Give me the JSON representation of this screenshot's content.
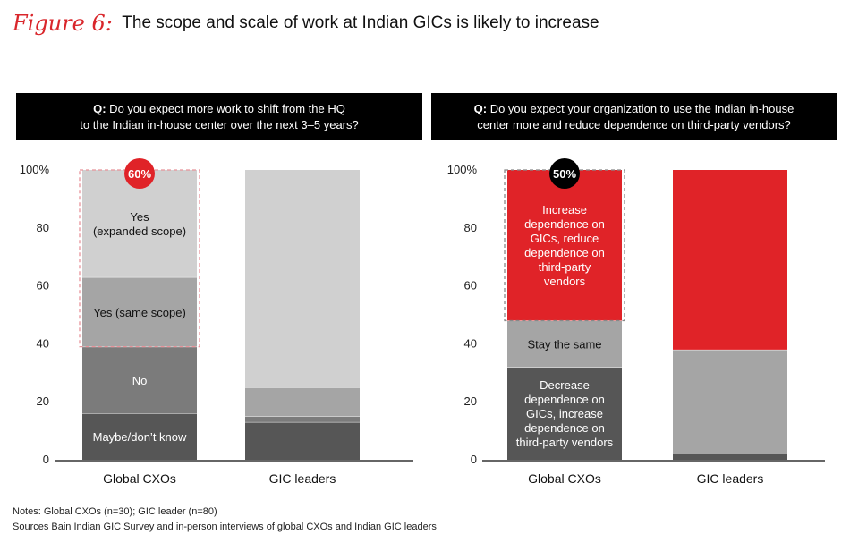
{
  "figure": {
    "label": "Figure 6:",
    "title": "The scope and scale of work at Indian GICs is likely to increase"
  },
  "colors": {
    "red": "#e02328",
    "black": "#000000",
    "dark_gray": "#565656",
    "mid_gray": "#7b7b7b",
    "light_gray": "#a5a5a5",
    "lightest_gray": "#d0d0d0"
  },
  "chart_data": [
    {
      "type": "bar",
      "stacked": true,
      "title": "Q: Do you expect more work to shift from the HQ to the Indian in-house center over the next 3–5 years?",
      "title_lines": [
        [
          "Q:",
          " Do you expect more work to shift from the HQ"
        ],
        [
          "",
          "to the Indian in-house center over the next 3–5 years?"
        ]
      ],
      "categories": [
        "Global CXOs",
        "GIC leaders"
      ],
      "yticks": [
        "0",
        "20",
        "40",
        "60",
        "80",
        "100%"
      ],
      "ylim": [
        0,
        100
      ],
      "series": [
        {
          "name": "Maybe/don't know",
          "label_lines": [
            "Maybe/don’t know"
          ],
          "color": "#565656",
          "text_color": "#ffffff",
          "values": [
            16,
            13
          ]
        },
        {
          "name": "No",
          "label_lines": [
            "No"
          ],
          "color": "#7b7b7b",
          "text_color": "#ffffff",
          "values": [
            23,
            2
          ]
        },
        {
          "name": "Yes (same scope)",
          "label_lines": [
            "Yes (same scope)"
          ],
          "color": "#a5a5a5",
          "text_color": "#111111",
          "values": [
            24,
            10
          ]
        },
        {
          "name": "Yes (expanded scope)",
          "label_lines": [
            "Yes",
            "(expanded scope)"
          ],
          "color": "#d0d0d0",
          "text_color": "#111111",
          "values": [
            37,
            75
          ]
        }
      ],
      "highlight": {
        "label": "60%",
        "bottom": 39,
        "top": 100,
        "badge_color": "#e02328",
        "border_color": "#e8939a"
      }
    },
    {
      "type": "bar",
      "stacked": true,
      "title": "Q: Do you expect your organization to use the Indian in-house center more and reduce dependence on third-party vendors?",
      "title_lines": [
        [
          "Q:",
          " Do you expect your organization to use the Indian in-house"
        ],
        [
          "",
          "center more and reduce dependence on third-party vendors?"
        ]
      ],
      "categories": [
        "Global CXOs",
        "GIC leaders"
      ],
      "yticks": [
        "0",
        "20",
        "40",
        "60",
        "80",
        "100%"
      ],
      "ylim": [
        0,
        100
      ],
      "series": [
        {
          "name": "Decrease dependence on GICs, increase dependence on third-party vendors",
          "label_lines": [
            "Decrease",
            "dependence on",
            "GICs, increase",
            "dependence on",
            "third-party vendors"
          ],
          "color": "#565656",
          "text_color": "#ffffff",
          "values": [
            32,
            2
          ]
        },
        {
          "name": "Stay the same",
          "label_lines": [
            "Stay the same"
          ],
          "color": "#a5a5a5",
          "text_color": "#111111",
          "values": [
            16,
            36
          ]
        },
        {
          "name": "Increase dependence on GICs, reduce dependence on third-party vendors",
          "label_lines": [
            "Increase",
            "dependence on",
            "GICs, reduce",
            "dependence on",
            "third-party",
            "vendors"
          ],
          "color": "#e02328",
          "text_color": "#ffffff",
          "values": [
            52,
            62
          ]
        }
      ],
      "highlight": {
        "label": "50%",
        "bottom": 48,
        "top": 100,
        "badge_color": "#000000",
        "border_color": "#888888"
      }
    }
  ],
  "notes": {
    "line1": "Notes: Global CXOs (n=30); GIC leader (n=80)",
    "line2": "Sources Bain Indian GIC Survey and in-person interviews of global CXOs and Indian GIC leaders"
  }
}
